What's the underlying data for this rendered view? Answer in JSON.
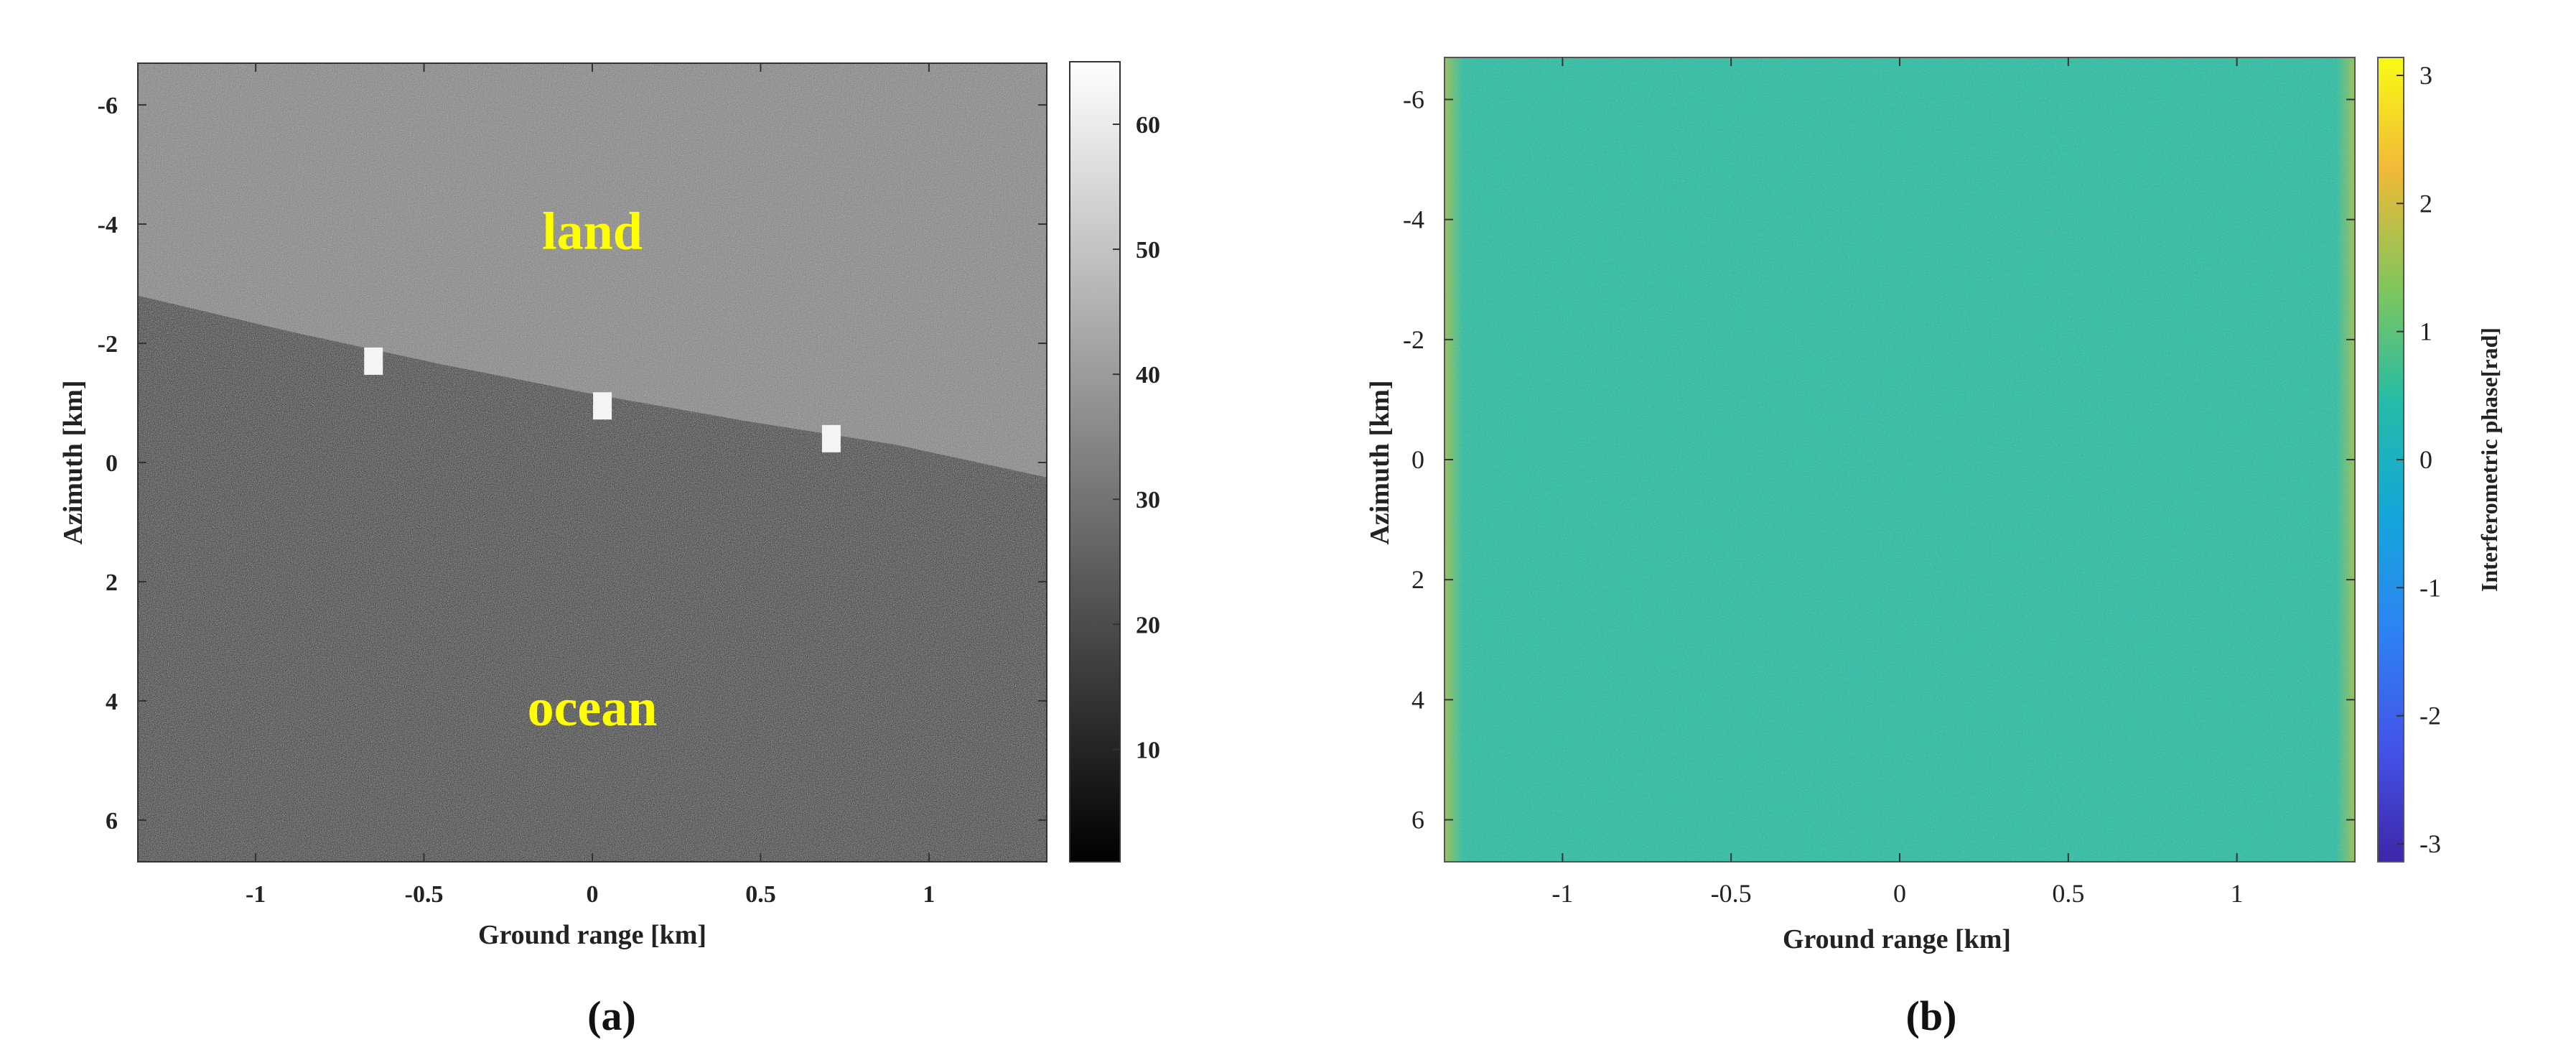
{
  "chart_data": [
    {
      "type": "heatmap",
      "panel_label": "(a)",
      "xlabel": "Ground range [km]",
      "ylabel": "Azimuth [km]",
      "xlim": [
        -1.35,
        1.35
      ],
      "ylim": [
        -6.7,
        6.7
      ],
      "y_reversed": true,
      "xticks": [
        -1,
        -0.5,
        0,
        0.5,
        1
      ],
      "xtick_labels": [
        "-1",
        "-0.5",
        "0",
        "0.5",
        "1"
      ],
      "yticks": [
        -6,
        -4,
        -2,
        0,
        2,
        4,
        6
      ],
      "ytick_labels": [
        "-6",
        "-4",
        "-2",
        "0",
        "2",
        "4",
        "6"
      ],
      "colorbar": {
        "colormap": "gray",
        "range": [
          1,
          65
        ],
        "ticks": [
          10,
          20,
          30,
          40,
          50,
          60
        ],
        "tick_labels": [
          "10",
          "20",
          "30",
          "40",
          "50",
          "60"
        ],
        "label": ""
      },
      "coastline": {
        "x": [
          -1.35,
          -0.9,
          -0.45,
          0,
          0.45,
          0.9,
          1.35
        ],
        "y": [
          -2.8,
          -2.2,
          -1.65,
          -1.15,
          -0.7,
          -0.3,
          0.25
        ]
      },
      "targets": [
        {
          "x": -0.65,
          "y": -1.7
        },
        {
          "x": 0.03,
          "y": -0.95
        },
        {
          "x": 0.71,
          "y": -0.4
        }
      ],
      "annotations": [
        {
          "text": "land",
          "x": 0,
          "y": -3.9,
          "color": "#ffff00"
        },
        {
          "text": "ocean",
          "x": 0,
          "y": 4.1,
          "color": "#ffff00"
        }
      ]
    },
    {
      "type": "heatmap",
      "panel_label": "(b)",
      "xlabel": "Ground range [km]",
      "ylabel": "Azimuth [km]",
      "xlim": [
        -1.35,
        1.35
      ],
      "ylim": [
        -6.7,
        6.7
      ],
      "y_reversed": true,
      "xticks": [
        -1,
        -0.5,
        0,
        0.5,
        1
      ],
      "xtick_labels": [
        "-1",
        "-0.5",
        "0",
        "0.5",
        "1"
      ],
      "yticks": [
        -6,
        -4,
        -2,
        0,
        2,
        4,
        6
      ],
      "ytick_labels": [
        "-6",
        "-4",
        "-2",
        "0",
        "2",
        "4",
        "6"
      ],
      "colorbar": {
        "colormap": "parula",
        "range": [
          -3.14,
          3.14
        ],
        "ticks": [
          -3,
          -2,
          -1,
          0,
          1,
          2,
          3
        ],
        "tick_labels": [
          "-3",
          "-2",
          "-1",
          "0",
          "1",
          "2",
          "3"
        ],
        "label": "Interferometric phase[rad]"
      }
    }
  ]
}
